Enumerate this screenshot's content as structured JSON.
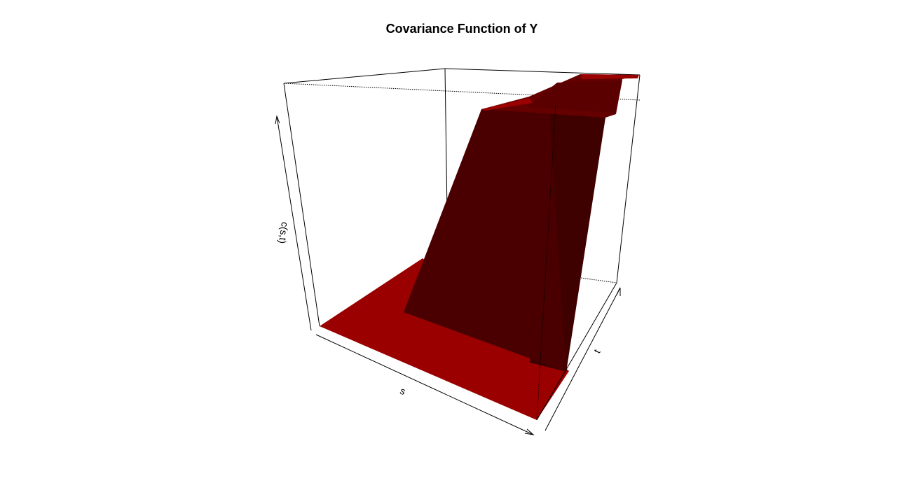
{
  "chart_data": {
    "type": "surface",
    "title": "Covariance Function of Y",
    "xlabel": "s",
    "ylabel": "t",
    "zlabel": "c(s,t)",
    "box": true,
    "ticks": false,
    "colors": {
      "low_plane": "#9b0000",
      "wall": "#4a0000",
      "top_plane": "#6a0000",
      "top_edge": "#9b0000",
      "axes": "#000000"
    }
  }
}
